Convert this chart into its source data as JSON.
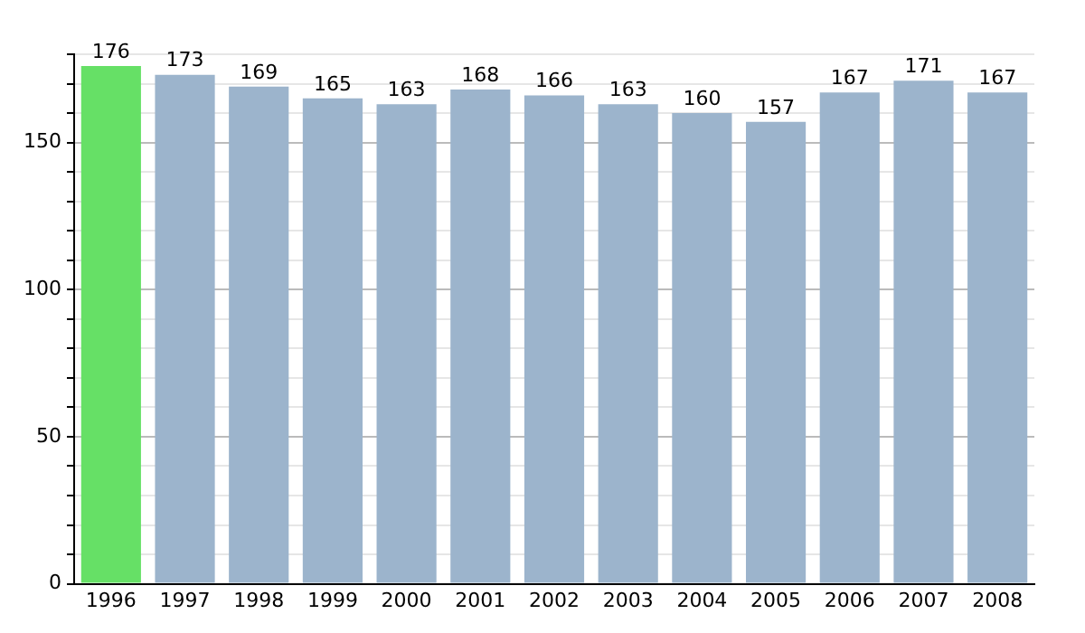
{
  "chart_data": {
    "type": "bar",
    "categories": [
      "1996",
      "1997",
      "1998",
      "1999",
      "2000",
      "2001",
      "2002",
      "2003",
      "2004",
      "2005",
      "2006",
      "2007",
      "2008"
    ],
    "values": [
      176,
      173,
      169,
      165,
      163,
      168,
      166,
      163,
      160,
      157,
      167,
      171,
      167
    ],
    "colors": [
      "#66e066",
      "#9cb4cc",
      "#9cb4cc",
      "#9cb4cc",
      "#9cb4cc",
      "#9cb4cc",
      "#9cb4cc",
      "#9cb4cc",
      "#9cb4cc",
      "#9cb4cc",
      "#9cb4cc",
      "#9cb4cc",
      "#9cb4cc"
    ],
    "ylim": [
      0,
      180
    ],
    "yticks": [
      0,
      {
        "value": 10,
        "label": null
      },
      {
        "value": 20,
        "label": null
      },
      {
        "value": 30,
        "label": null
      },
      {
        "value": 40,
        "label": null
      },
      50,
      {
        "value": 60,
        "label": null
      },
      {
        "value": 70,
        "label": null
      },
      {
        "value": 80,
        "label": null
      },
      {
        "value": 90,
        "label": null
      },
      100,
      {
        "value": 110,
        "label": null
      },
      {
        "value": 120,
        "label": null
      },
      {
        "value": 130,
        "label": null
      },
      {
        "value": 140,
        "label": null
      },
      150,
      {
        "value": 160,
        "label": null
      },
      {
        "value": 170,
        "label": null
      },
      {
        "value": 180,
        "label": null
      }
    ],
    "grid": "y",
    "data_labels": true
  }
}
